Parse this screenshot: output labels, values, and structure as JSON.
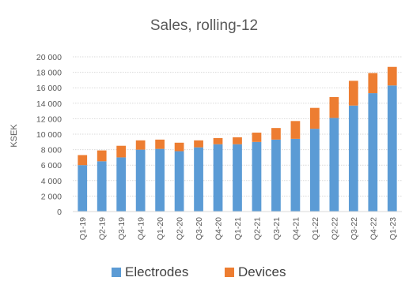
{
  "chart_data": {
    "type": "bar",
    "stacked": true,
    "title": "Sales, rolling-12",
    "xlabel": "",
    "ylabel": "KSEK",
    "ylim": [
      0,
      20000
    ],
    "yticks": [
      0,
      2000,
      4000,
      6000,
      8000,
      10000,
      12000,
      14000,
      16000,
      18000,
      20000
    ],
    "ytick_labels": [
      "0",
      "2 000",
      "4 000",
      "6 000",
      "8 000",
      "10 000",
      "12 000",
      "14 000",
      "16 000",
      "18 000",
      "20 000"
    ],
    "grid": true,
    "legend_position": "bottom",
    "categories": [
      "Q1-19",
      "Q2-19",
      "Q3-19",
      "Q4-19",
      "Q1-20",
      "Q2-20",
      "Q3-20",
      "Q4-20",
      "Q1-21",
      "Q2-21",
      "Q3-21",
      "Q4-21",
      "Q1-22",
      "Q2-22",
      "Q3-22",
      "Q4-22",
      "Q1-23"
    ],
    "series": [
      {
        "name": "Electrodes",
        "color": "#5b9bd5",
        "values": [
          6000,
          6500,
          7000,
          8000,
          8100,
          7800,
          8300,
          8700,
          8700,
          9000,
          9300,
          9400,
          10700,
          12100,
          13700,
          15300,
          16300
        ]
      },
      {
        "name": "Devices",
        "color": "#ed7d31",
        "values": [
          1300,
          1400,
          1500,
          1200,
          1200,
          1100,
          900,
          800,
          900,
          1200,
          1500,
          2300,
          2700,
          2700,
          3200,
          2600,
          2400
        ]
      }
    ]
  }
}
